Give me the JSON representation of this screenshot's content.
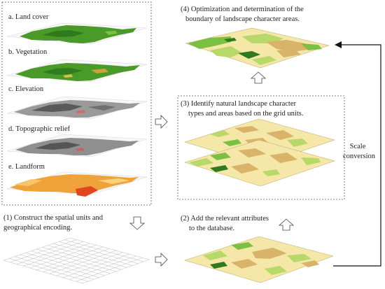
{
  "left_panel": {
    "layers": [
      {
        "label": "a. Land cover"
      },
      {
        "label": "b. Vegetation"
      },
      {
        "label": "c. Elevation"
      },
      {
        "label": "d. Topographic relief"
      },
      {
        "label": "e. Landform"
      }
    ]
  },
  "step1": {
    "line1": "(1) Construct the spatial units and",
    "line2": "geographical encoding."
  },
  "step2": {
    "line1": "(2) Add the relevant attributes",
    "line2": "to the database."
  },
  "step3": {
    "line1": "(3) Identify natural landscape character",
    "line2": "types and areas based on the grid units."
  },
  "step4": {
    "line1": "(4) Optimization and determination of the",
    "line2": "boundary of landscape character areas."
  },
  "side_label": {
    "line1": "Scale",
    "line2": "conversion"
  },
  "colors": {
    "land_green": "#4a9a2a",
    "pale_yellow": "#f5e7a8",
    "tan": "#d9b36a",
    "light_green": "#b8d86a",
    "landform_orange": "#f0a23a",
    "landform_red": "#e2461c",
    "gray_elevation": "#8a8a8a",
    "frame_dash": "#555555"
  }
}
